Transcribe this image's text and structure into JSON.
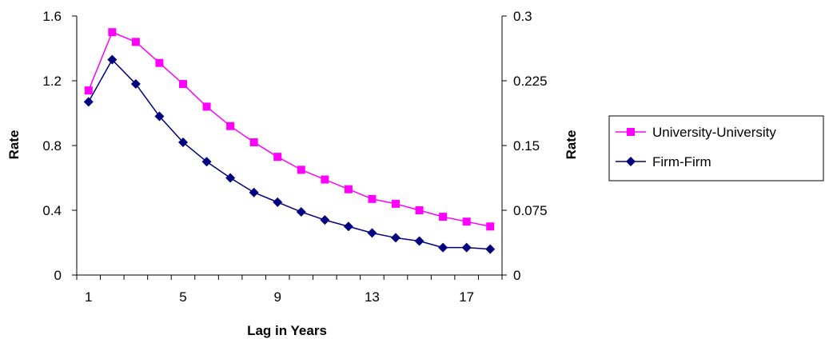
{
  "chart_data": {
    "type": "line",
    "xlabel": "Lag in Years",
    "ylabel_left": "Rate",
    "ylabel_right": "Rate",
    "x": [
      1,
      2,
      3,
      4,
      5,
      6,
      7,
      8,
      9,
      10,
      11,
      12,
      13,
      14,
      15,
      16,
      17,
      18
    ],
    "x_ticks": [
      "1",
      "5",
      "9",
      "13",
      "17"
    ],
    "x_tick_values": [
      1,
      5,
      9,
      13,
      17
    ],
    "y_left_ticks": [
      "0",
      "0.4",
      "0.8",
      "1.2",
      "1.6"
    ],
    "y_left_tick_values": [
      0,
      0.4,
      0.8,
      1.2,
      1.6
    ],
    "y_right_ticks": [
      "0",
      "0.075",
      "0.15",
      "0.225",
      "0.3"
    ],
    "y_right_tick_values": [
      0,
      0.075,
      0.15,
      0.225,
      0.3
    ],
    "ylim_left": [
      0,
      1.6
    ],
    "ylim_right": [
      0,
      0.3
    ],
    "xlim": [
      0.5,
      18.5
    ],
    "grid": false,
    "legend_position": "right",
    "series": [
      {
        "name": "University-University",
        "axis": "left",
        "color": "#ff00ff",
        "marker": "square",
        "values": [
          1.14,
          1.5,
          1.44,
          1.31,
          1.18,
          1.04,
          0.92,
          0.82,
          0.73,
          0.65,
          0.59,
          0.53,
          0.47,
          0.44,
          0.4,
          0.36,
          0.33,
          0.3
        ]
      },
      {
        "name": "Firm-Firm",
        "axis": "left",
        "color": "#000080",
        "marker": "diamond",
        "values": [
          1.07,
          1.33,
          1.18,
          0.98,
          0.82,
          0.7,
          0.6,
          0.51,
          0.45,
          0.39,
          0.34,
          0.3,
          0.26,
          0.23,
          0.21,
          0.17,
          0.17,
          0.16
        ]
      }
    ]
  }
}
